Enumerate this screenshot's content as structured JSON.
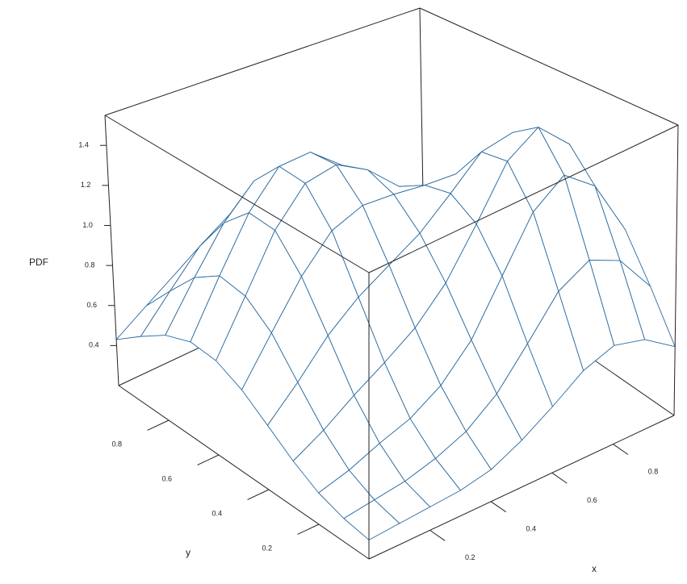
{
  "chart_data": {
    "type": "surface3d",
    "zlabel": "PDF",
    "xlabel": "x",
    "ylabel": "y",
    "color": "#2b6a9e",
    "x": [
      0,
      0.1,
      0.2,
      0.3,
      0.4,
      0.5,
      0.6,
      0.7,
      0.8,
      0.9,
      1
    ],
    "y": [
      0,
      0.1,
      0.2,
      0.3,
      0.4,
      0.5,
      0.6,
      0.7,
      0.8,
      0.9,
      1
    ],
    "z": [
      [
        0.29,
        0.3,
        0.31,
        0.32,
        0.35,
        0.42,
        0.51,
        0.61,
        0.66,
        0.62,
        0.52
      ],
      [
        0.31,
        0.33,
        0.35,
        0.39,
        0.45,
        0.56,
        0.73,
        0.91,
        0.99,
        0.92,
        0.73
      ],
      [
        0.35,
        0.39,
        0.45,
        0.5,
        0.59,
        0.74,
        0.98,
        1.22,
        1.33,
        1.21,
        0.93
      ],
      [
        0.42,
        0.5,
        0.6,
        0.69,
        0.79,
        0.94,
        1.16,
        1.4,
        1.5,
        1.35,
        1.02
      ],
      [
        0.51,
        0.65,
        0.81,
        0.93,
        1.02,
        1.11,
        1.24,
        1.38,
        1.41,
        1.25,
        0.95
      ],
      [
        0.6,
        0.81,
        1.02,
        1.18,
        1.24,
        1.23,
        1.21,
        1.2,
        1.14,
        0.98,
        0.75
      ],
      [
        0.66,
        0.91,
        1.17,
        1.34,
        1.37,
        1.28,
        1.13,
        0.99,
        0.85,
        0.7,
        0.55
      ],
      [
        0.67,
        0.93,
        1.18,
        1.35,
        1.36,
        1.23,
        1.02,
        0.81,
        0.64,
        0.51,
        0.41
      ],
      [
        0.62,
        0.84,
        1.05,
        1.2,
        1.2,
        1.07,
        0.86,
        0.66,
        0.5,
        0.4,
        0.34
      ],
      [
        0.53,
        0.69,
        0.85,
        0.95,
        0.95,
        0.85,
        0.69,
        0.54,
        0.42,
        0.35,
        0.31
      ],
      [
        0.43,
        0.53,
        0.63,
        0.69,
        0.69,
        0.63,
        0.53,
        0.43,
        0.36,
        0.31,
        0.29
      ]
    ],
    "xlim": [
      0,
      1
    ],
    "ylim": [
      0,
      1
    ],
    "zlim": [
      0.2,
      1.55
    ],
    "xticks": [
      0.2,
      0.4,
      0.6,
      0.8
    ],
    "yticks": [
      0.2,
      0.4,
      0.6,
      0.8
    ],
    "zticks": [
      0.4,
      0.6,
      0.8,
      {
        "value": 1,
        "label": "1.0"
      },
      1.2,
      1.4
    ]
  }
}
